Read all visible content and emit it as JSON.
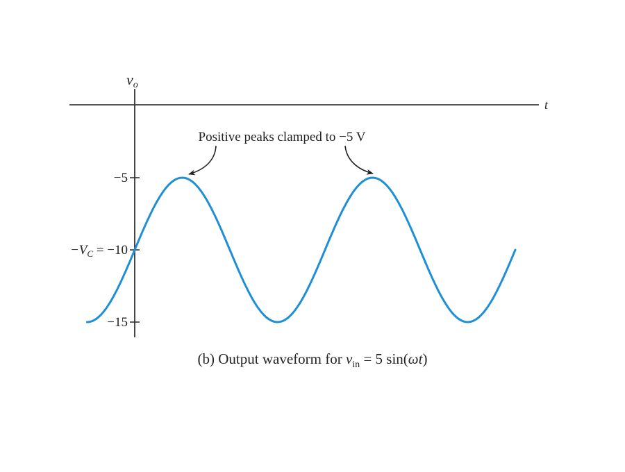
{
  "chart_data": {
    "type": "line",
    "title": "(b) Output waveform for v_in = 5 sin(ωt)",
    "xlabel": "t",
    "ylabel": "v_o",
    "yticks": [
      {
        "value": -5,
        "label": "−5"
      },
      {
        "value": -10,
        "label": "−V_C = −10"
      },
      {
        "value": -15,
        "label": "−15"
      }
    ],
    "ylim": [
      -16,
      0
    ],
    "grid": false,
    "legend": null,
    "series": [
      {
        "name": "v_o",
        "color": "#1E8FD6",
        "description": "v_o = -10 + 5 sin(ωt), shifted sinusoid oscillating between -15 and -5",
        "x_periods": [
          -0.25,
          2.0
        ],
        "points": [
          {
            "t_period": -0.25,
            "v": -15
          },
          {
            "t_period": 0.0,
            "v": -10
          },
          {
            "t_period": 0.25,
            "v": -5
          },
          {
            "t_period": 0.5,
            "v": -10
          },
          {
            "t_period": 0.75,
            "v": -15
          },
          {
            "t_period": 1.0,
            "v": -10
          },
          {
            "t_period": 1.25,
            "v": -5
          },
          {
            "t_period": 1.5,
            "v": -10
          },
          {
            "t_period": 1.75,
            "v": -15
          },
          {
            "t_period": 2.0,
            "v": -10
          }
        ]
      }
    ],
    "annotations": [
      {
        "text": "Positive peaks clamped to −5 V",
        "points_to": [
          {
            "t_period": 0.25,
            "v": -5
          },
          {
            "t_period": 1.25,
            "v": -5
          }
        ]
      }
    ]
  },
  "labels": {
    "y_axis": "v",
    "y_axis_sub": "o",
    "x_axis": "t",
    "tick_m5": "−5",
    "tick_m10_prefix": "−V",
    "tick_m10_sub": "C",
    "tick_m10_suffix": " = −10",
    "tick_m15": "−15",
    "annotation": "Positive peaks clamped to −5 V",
    "caption_prefix": "(b) Output waveform for ",
    "caption_var": "v",
    "caption_sub": "in",
    "caption_suffix": " = 5 sin(",
    "caption_omega": "ωt",
    "caption_close": ")"
  }
}
